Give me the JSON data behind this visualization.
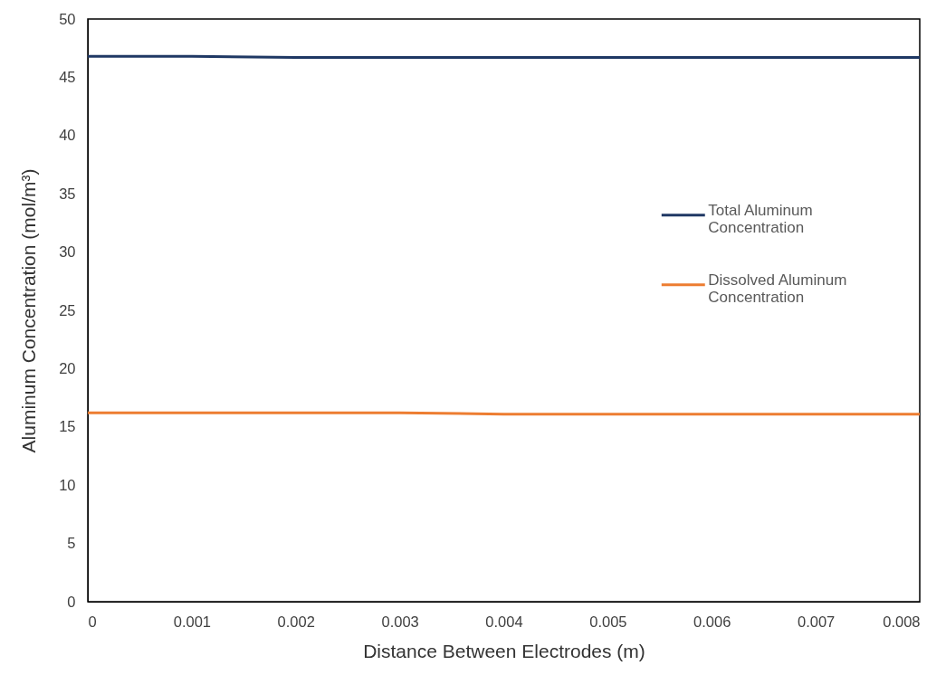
{
  "chart_data": {
    "type": "line",
    "xlabel": "Distance Between Electrodes (m)",
    "ylabel": "Aluminum Concentration (mol/m³)",
    "x": [
      0,
      0.001,
      0.002,
      0.003,
      0.004,
      0.005,
      0.006,
      0.007,
      0.008
    ],
    "series": [
      {
        "name": "Total Aluminum Concentration",
        "color": "#1f3864",
        "values": [
          46.8,
          46.8,
          46.7,
          46.7,
          46.7,
          46.7,
          46.7,
          46.7,
          46.7
        ]
      },
      {
        "name": "Dissolved Aluminum Concentration",
        "color": "#ed7d31",
        "values": [
          16.2,
          16.2,
          16.2,
          16.2,
          16.1,
          16.1,
          16.1,
          16.1,
          16.1
        ]
      }
    ],
    "xlim": [
      0,
      0.008
    ],
    "xticks": [
      0,
      0.001,
      0.002,
      0.003,
      0.004,
      0.005,
      0.006,
      0.007,
      0.008
    ],
    "ylim": [
      0,
      50
    ],
    "yticks": [
      0,
      5,
      10,
      15,
      20,
      25,
      30,
      35,
      40,
      45,
      50
    ],
    "grid": false,
    "legend": "right",
    "line_style": "solid"
  }
}
